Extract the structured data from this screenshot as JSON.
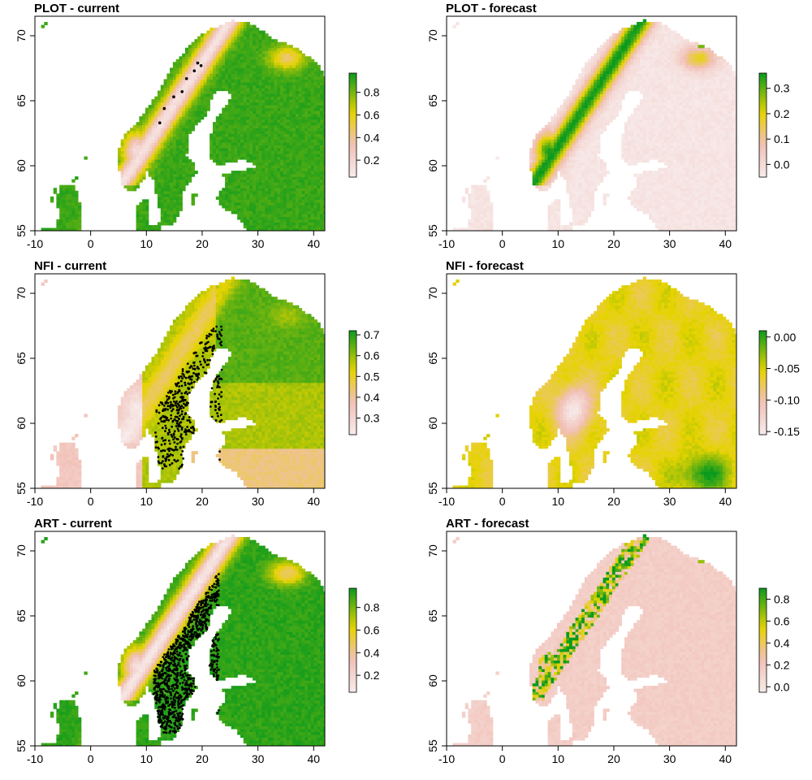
{
  "chart_data": [
    {
      "type": "heatmap",
      "title": "PLOT - current",
      "xlabel": "",
      "ylabel": "",
      "xlim": [
        -10,
        42
      ],
      "ylim": [
        55,
        71.5
      ],
      "xticks": [
        "-10",
        "0",
        "10",
        "20",
        "30",
        "40"
      ],
      "yticks": [
        "55",
        "60",
        "65",
        "70"
      ],
      "colorbar": {
        "ticks": [
          "0.2",
          "0.4",
          "0.6",
          "0.8"
        ],
        "range": [
          0.05,
          0.97
        ]
      },
      "map_style": "current",
      "points": [
        [
          19.2,
          67.9
        ],
        [
          19.8,
          67.7
        ],
        [
          18.6,
          67.3
        ],
        [
          17.2,
          66.7
        ],
        [
          16.4,
          65.7
        ],
        [
          14.9,
          65.3
        ],
        [
          13.2,
          64.4
        ],
        [
          12.4,
          63.3
        ]
      ],
      "colors": {
        "high": "#0a9a1e",
        "mid": "#e6d300",
        "low": "#f1bfb4",
        "min": "#f7ebeb"
      }
    },
    {
      "type": "heatmap",
      "title": "PLOT - forecast",
      "xlabel": "",
      "ylabel": "",
      "xlim": [
        -10,
        42
      ],
      "ylim": [
        55,
        71.5
      ],
      "xticks": [
        "-10",
        "0",
        "10",
        "20",
        "30",
        "40"
      ],
      "yticks": [
        "55",
        "60",
        "65",
        "70"
      ],
      "colorbar": {
        "ticks": [
          "0.0",
          "0.1",
          "0.2",
          "0.3"
        ],
        "range": [
          -0.05,
          0.36
        ]
      },
      "map_style": "forecast",
      "points": [],
      "colors": {
        "high": "#0a9a1e",
        "mid": "#e6d300",
        "low": "#f1bfb4",
        "min": "#f7ebeb"
      }
    },
    {
      "type": "heatmap",
      "title": "NFI - current",
      "xlabel": "",
      "ylabel": "",
      "xlim": [
        -10,
        42
      ],
      "ylim": [
        55,
        71.5
      ],
      "xticks": [
        "-10",
        "0",
        "10",
        "20",
        "30",
        "40"
      ],
      "yticks": [
        "55",
        "60",
        "65",
        "70"
      ],
      "colorbar": {
        "ticks": [
          "0.3",
          "0.4",
          "0.5",
          "0.6",
          "0.7"
        ],
        "range": [
          0.22,
          0.72
        ]
      },
      "map_style": "nfi",
      "point_cloud": {
        "lon_range": [
          11.5,
          23.5
        ],
        "lat_range": [
          56.5,
          67.5
        ],
        "n": 420
      },
      "colors": {
        "high": "#0a9a1e",
        "mid": "#e6d300",
        "low": "#f1bfb4",
        "min": "#f7ebeb"
      }
    },
    {
      "type": "heatmap",
      "title": "NFI - forecast",
      "xlabel": "",
      "ylabel": "",
      "xlim": [
        -10,
        42
      ],
      "ylim": [
        55,
        71.5
      ],
      "xticks": [
        "-10",
        "0",
        "10",
        "20",
        "30",
        "40"
      ],
      "yticks": [
        "55",
        "60",
        "65",
        "70"
      ],
      "colorbar": {
        "ticks": [
          "0.00",
          "-0.05",
          "-0.10",
          "-0.15"
        ],
        "range": [
          -0.155,
          0.01
        ]
      },
      "map_style": "nfi_forecast",
      "points": [],
      "colors": {
        "high": "#0a9a1e",
        "mid": "#e6d300",
        "low": "#f1bfb4",
        "min": "#f7ebeb"
      }
    },
    {
      "type": "heatmap",
      "title": "ART - current",
      "xlabel": "",
      "ylabel": "",
      "xlim": [
        -10,
        42
      ],
      "ylim": [
        55,
        71.5
      ],
      "xticks": [
        "-10",
        "0",
        "10",
        "20",
        "30",
        "40"
      ],
      "yticks": [
        "55",
        "60",
        "65",
        "70"
      ],
      "colorbar": {
        "ticks": [
          "0.2",
          "0.4",
          "0.6",
          "0.8"
        ],
        "range": [
          0.05,
          0.97
        ]
      },
      "map_style": "art",
      "point_cloud": {
        "lon_range": [
          11,
          23
        ],
        "lat_range": [
          56,
          69
        ],
        "n": 900
      },
      "colors": {
        "high": "#0a9a1e",
        "mid": "#e6d300",
        "low": "#f1bfb4",
        "min": "#f7ebeb"
      }
    },
    {
      "type": "heatmap",
      "title": "ART - forecast",
      "xlabel": "",
      "ylabel": "",
      "xlim": [
        -10,
        42
      ],
      "ylim": [
        55,
        71.5
      ],
      "xticks": [
        "-10",
        "0",
        "10",
        "20",
        "30",
        "40"
      ],
      "yticks": [
        "55",
        "60",
        "65",
        "70"
      ],
      "colorbar": {
        "ticks": [
          "0.0",
          "0.2",
          "0.4",
          "0.6",
          "0.8"
        ],
        "range": [
          -0.05,
          0.9
        ]
      },
      "map_style": "art_forecast",
      "points": [],
      "colors": {
        "high": "#0a9a1e",
        "mid": "#e6d300",
        "low": "#f1bfb4",
        "min": "#f7ebeb"
      }
    }
  ]
}
